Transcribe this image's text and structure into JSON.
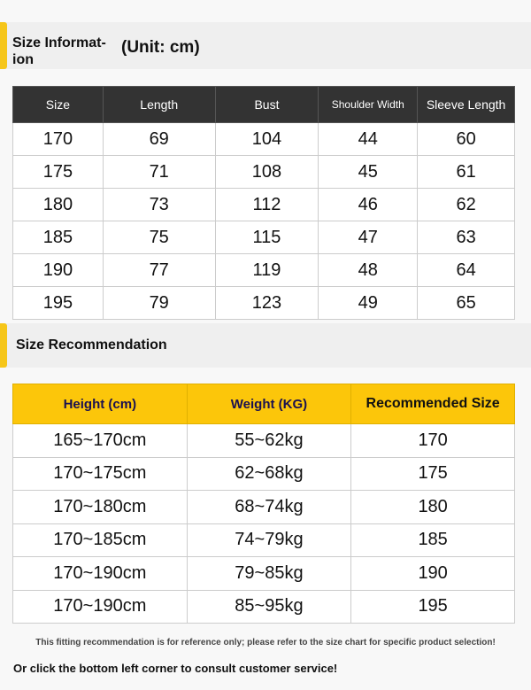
{
  "size_info": {
    "title": "Size Informat-ion",
    "unit": "(Unit: cm)",
    "headers": [
      "Size",
      "Length",
      "Bust",
      "Shoulder Width",
      "Sleeve Length"
    ],
    "rows": [
      [
        "170",
        "69",
        "104",
        "44",
        "60"
      ],
      [
        "175",
        "71",
        "108",
        "45",
        "61"
      ],
      [
        "180",
        "73",
        "112",
        "46",
        "62"
      ],
      [
        "185",
        "75",
        "115",
        "47",
        "63"
      ],
      [
        "190",
        "77",
        "119",
        "48",
        "64"
      ],
      [
        "195",
        "79",
        "123",
        "49",
        "65"
      ]
    ]
  },
  "recommendation": {
    "title": "Size Recommendation",
    "headers": [
      "Height (cm)",
      "Weight (KG)",
      "Recommended Size"
    ],
    "rows": [
      [
        "165~170cm",
        "55~62kg",
        "170"
      ],
      [
        "170~175cm",
        "62~68kg",
        "175"
      ],
      [
        "170~180cm",
        "68~74kg",
        "180"
      ],
      [
        "170~185cm",
        "74~79kg",
        "185"
      ],
      [
        "170~190cm",
        "79~85kg",
        "190"
      ],
      [
        "170~190cm",
        "85~95kg",
        "195"
      ]
    ]
  },
  "footer": {
    "note": "This fitting recommendation is for reference only; please refer to the size chart for specific product selection!",
    "service": "Or click the bottom left corner to consult customer service!"
  },
  "colors": {
    "accent": "#fcc60a",
    "header_dark": "#333333"
  }
}
